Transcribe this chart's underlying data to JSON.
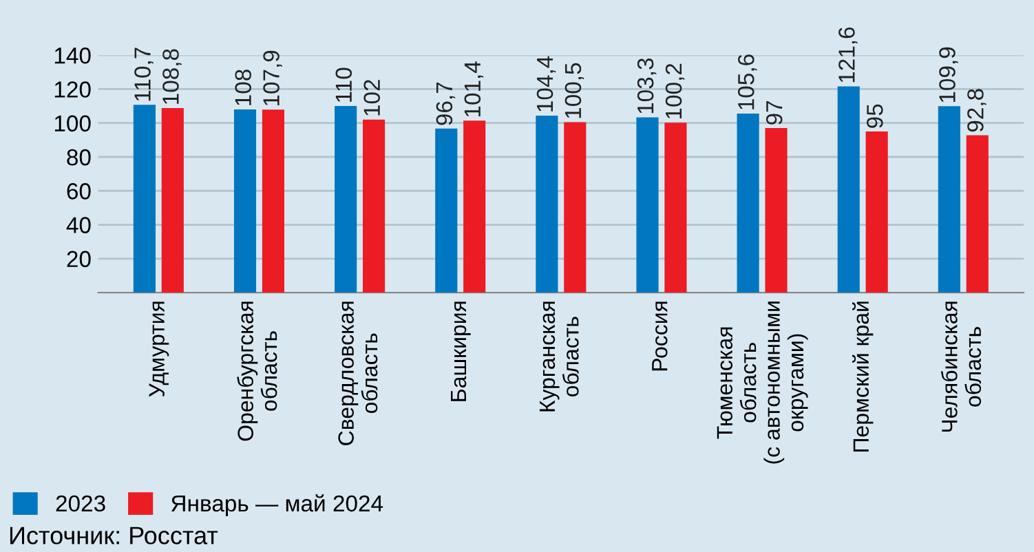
{
  "chart_data": {
    "type": "bar",
    "categories": [
      "Удмуртия",
      "Оренбургская\nобласть",
      "Свердловская\nобласть",
      "Башкирия",
      "Курганская\nобласть",
      "Россия",
      "Тюменская\nобласть\n(с автономными\nокругами)",
      "Пермский край",
      "Челябинская\nобласть"
    ],
    "series": [
      {
        "name": "2023",
        "color": "#0077c0",
        "values": [
          110.7,
          108,
          110,
          96.7,
          104.4,
          103.3,
          105.6,
          121.6,
          109.9
        ],
        "value_labels": [
          "110,7",
          "108",
          "110",
          "96,7",
          "104,4",
          "103,3",
          "105,6",
          "121,6",
          "109,9"
        ]
      },
      {
        "name": "Январь — май 2024",
        "color": "#ec1c24",
        "values": [
          108.8,
          107.9,
          102,
          101.4,
          100.5,
          100.2,
          97,
          95,
          92.8
        ],
        "value_labels": [
          "108,8",
          "107,9",
          "102",
          "101,4",
          "100,5",
          "100,2",
          "97",
          "95",
          "92,8"
        ]
      }
    ],
    "ylim": [
      0,
      140
    ],
    "yticks": [
      20,
      40,
      60,
      80,
      100,
      120,
      140
    ],
    "grid": "y",
    "legend": "bottom left",
    "annotations": [
      "Источник: Росстат"
    ]
  }
}
